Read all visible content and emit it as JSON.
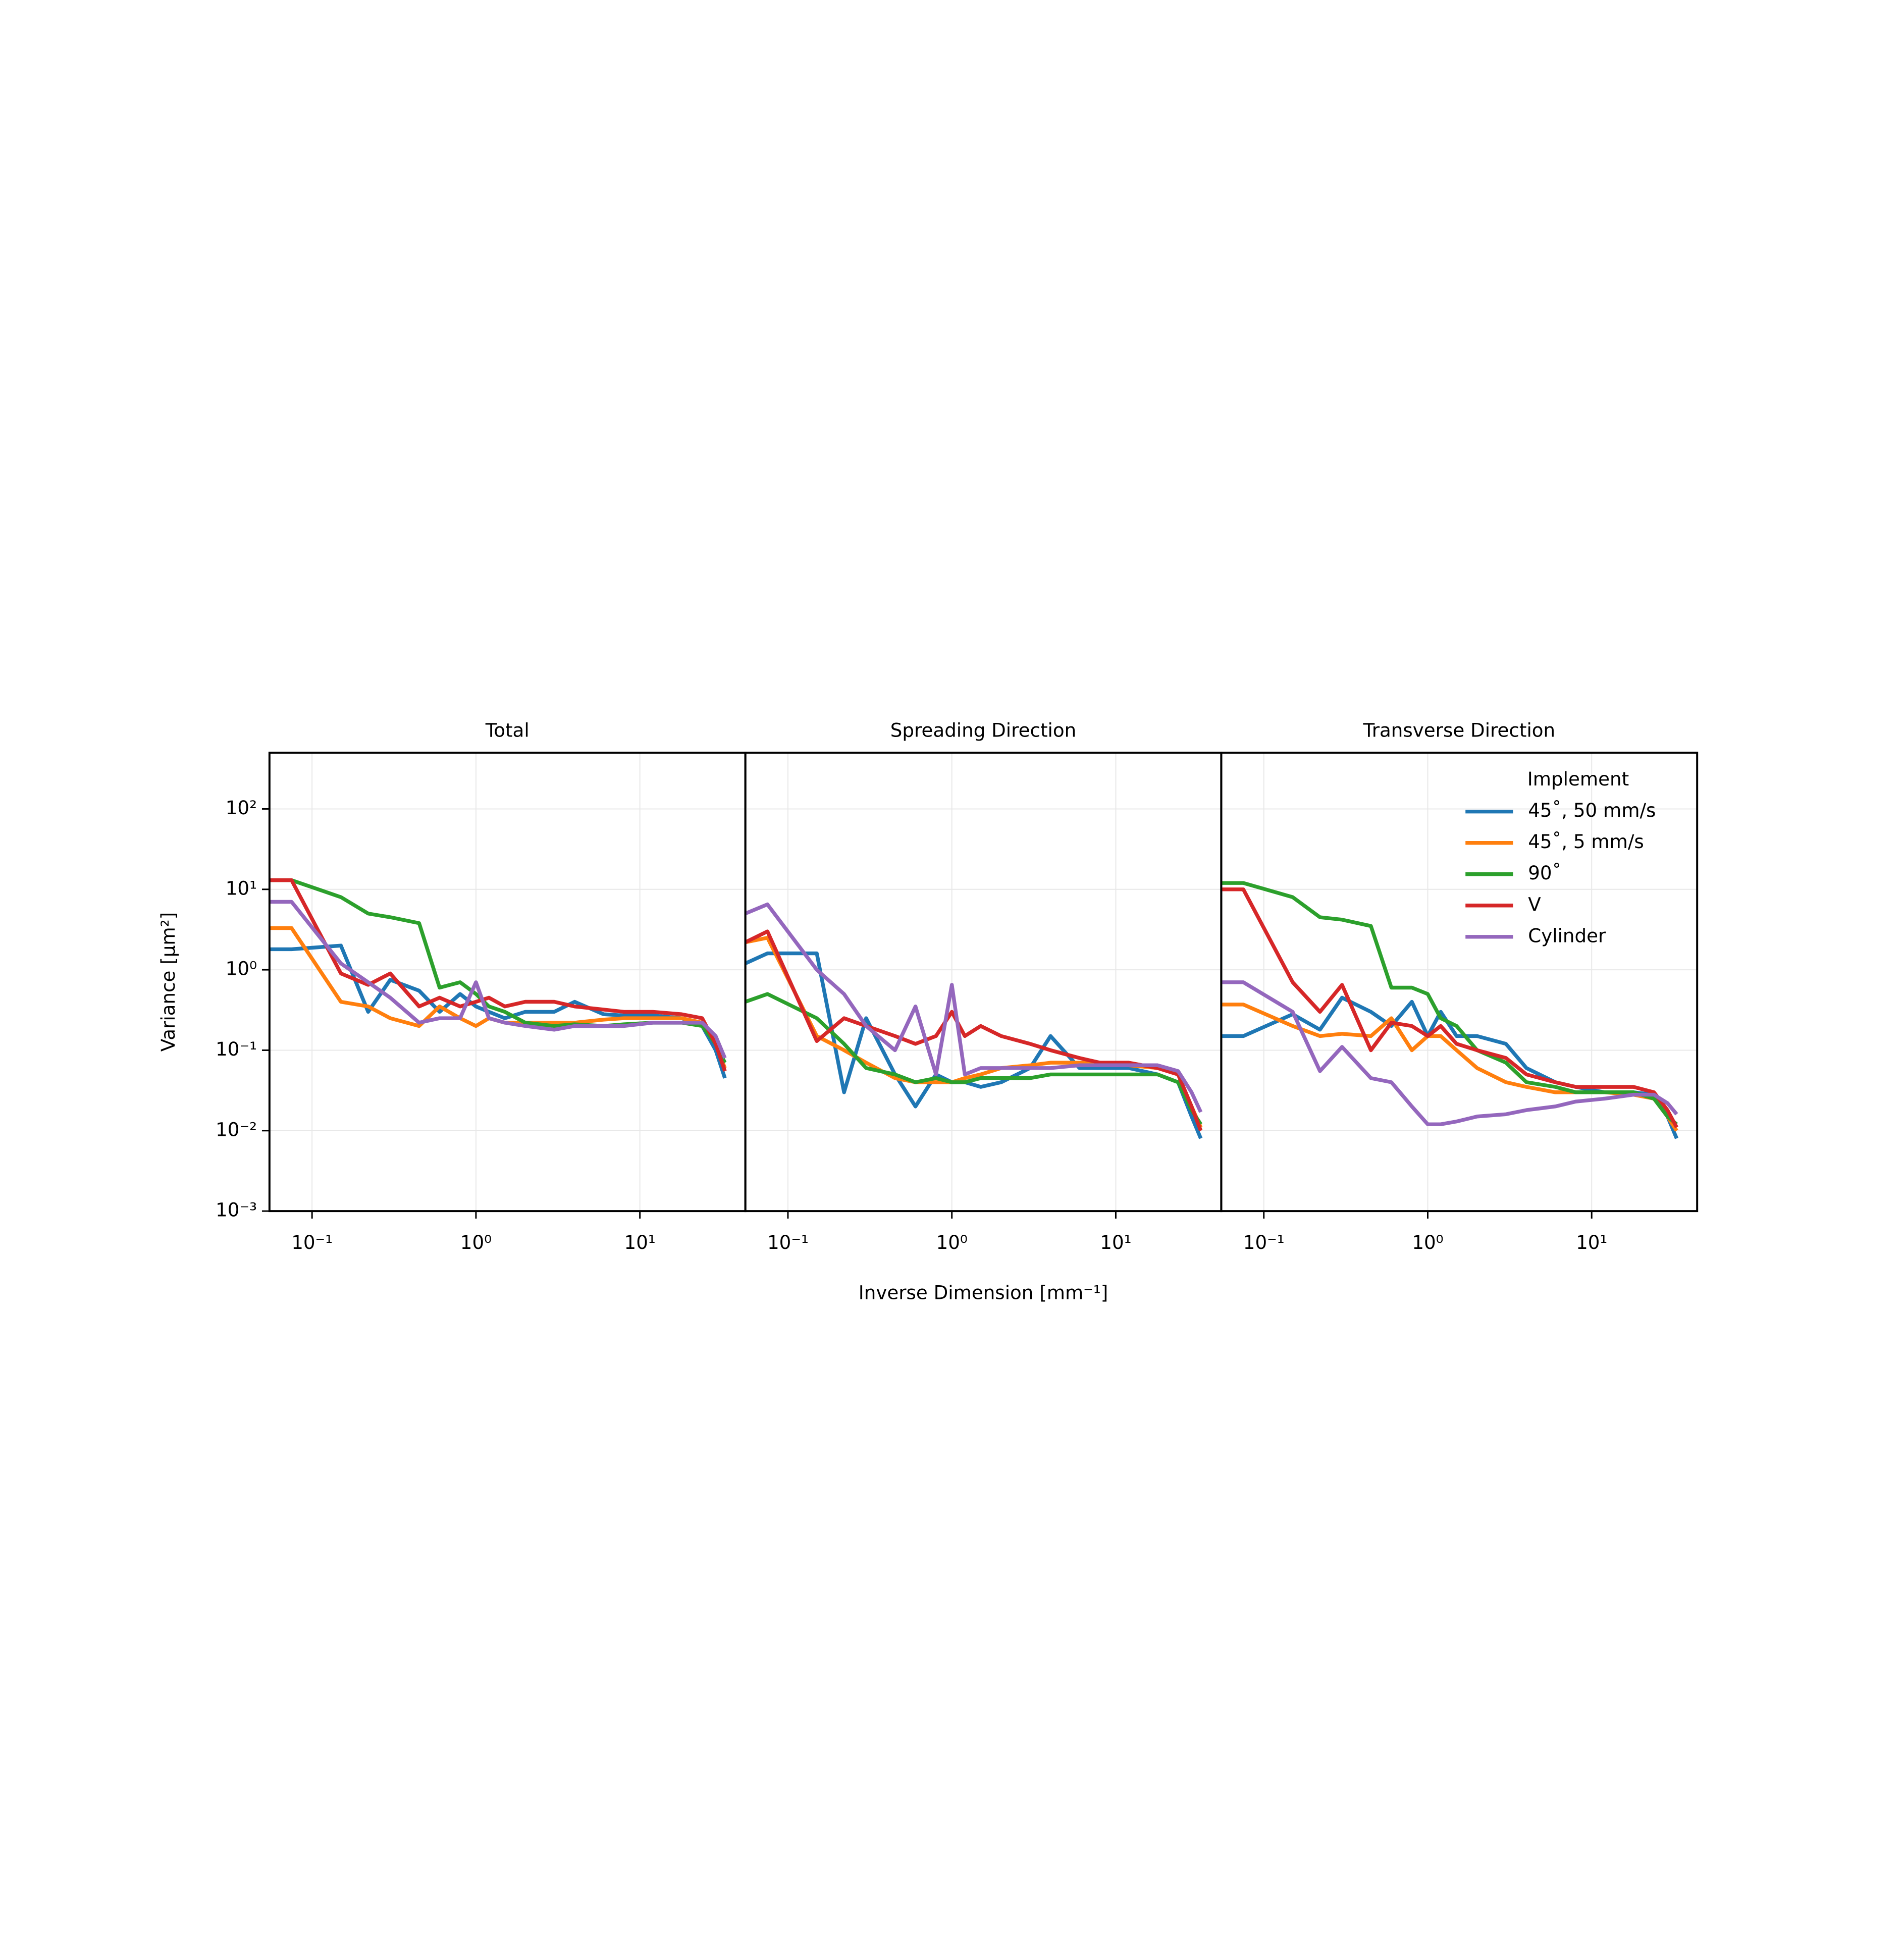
{
  "chart_data": [
    {
      "type": "line",
      "title": "Total",
      "y_label": "Variance [µm²]",
      "x": [
        0.055,
        0.075,
        0.15,
        0.22,
        0.3,
        0.45,
        0.6,
        0.8,
        1.0,
        1.2,
        1.5,
        2,
        3,
        4,
        6,
        8,
        12,
        18,
        24,
        29,
        33
      ],
      "series": [
        {
          "color": "#1f77b4",
          "values": [
            1.8,
            1.8,
            2.0,
            0.3,
            0.75,
            0.55,
            0.3,
            0.5,
            0.35,
            0.3,
            0.25,
            0.3,
            0.3,
            0.4,
            0.28,
            0.27,
            0.27,
            0.25,
            0.2,
            0.1,
            0.045
          ]
        },
        {
          "color": "#ff7f0e",
          "values": [
            3.3,
            3.3,
            0.4,
            0.35,
            0.25,
            0.2,
            0.35,
            0.25,
            0.2,
            0.25,
            0.22,
            0.22,
            0.22,
            0.22,
            0.24,
            0.25,
            0.25,
            0.25,
            0.22,
            0.12,
            0.06
          ]
        },
        {
          "color": "#2ca02c",
          "values": [
            13,
            13,
            8,
            5,
            4.5,
            3.8,
            0.6,
            0.7,
            0.5,
            0.35,
            0.3,
            0.22,
            0.2,
            0.21,
            0.2,
            0.21,
            0.22,
            0.22,
            0.2,
            0.12,
            0.07
          ]
        },
        {
          "color": "#d62728",
          "values": [
            13,
            13,
            0.9,
            0.65,
            0.9,
            0.35,
            0.45,
            0.35,
            0.4,
            0.45,
            0.35,
            0.4,
            0.4,
            0.35,
            0.32,
            0.3,
            0.3,
            0.28,
            0.25,
            0.12,
            0.055
          ]
        },
        {
          "color": "#9467bd",
          "values": [
            7,
            7,
            1.2,
            0.7,
            0.45,
            0.22,
            0.25,
            0.25,
            0.7,
            0.25,
            0.22,
            0.2,
            0.18,
            0.2,
            0.2,
            0.2,
            0.22,
            0.22,
            0.22,
            0.15,
            0.08
          ]
        }
      ],
      "xlim": [
        0.055,
        44
      ],
      "ylim": [
        0.001,
        500
      ],
      "log_x": true,
      "log_y": true,
      "grid": true,
      "xticks": [
        {
          "value": 0.1,
          "label": "10⁻¹"
        },
        {
          "value": 1,
          "label": "10⁰"
        },
        {
          "value": 10,
          "label": "10¹"
        }
      ],
      "yticks": [
        {
          "value": 0.001,
          "label": "10⁻³"
        },
        {
          "value": 0.01,
          "label": "10⁻²"
        },
        {
          "value": 0.1,
          "label": "10⁻¹"
        },
        {
          "value": 1,
          "label": "10⁰"
        },
        {
          "value": 10,
          "label": "10¹"
        },
        {
          "value": 100,
          "label": "10²"
        }
      ]
    },
    {
      "type": "line",
      "title": "Spreading Direction",
      "x_label": "Inverse Dimension [mm⁻¹]",
      "x": [
        0.055,
        0.075,
        0.15,
        0.22,
        0.3,
        0.45,
        0.6,
        0.8,
        1.0,
        1.2,
        1.5,
        2,
        3,
        4,
        6,
        8,
        12,
        18,
        24,
        29,
        33
      ],
      "series": [
        {
          "color": "#1f77b4",
          "values": [
            1.2,
            1.6,
            1.6,
            0.03,
            0.25,
            0.05,
            0.02,
            0.05,
            0.04,
            0.04,
            0.035,
            0.04,
            0.06,
            0.15,
            0.06,
            0.06,
            0.06,
            0.05,
            0.04,
            0.015,
            0.008
          ]
        },
        {
          "color": "#ff7f0e",
          "values": [
            2.2,
            2.5,
            0.15,
            0.1,
            0.07,
            0.045,
            0.04,
            0.04,
            0.04,
            0.045,
            0.05,
            0.06,
            0.065,
            0.07,
            0.07,
            0.07,
            0.065,
            0.06,
            0.05,
            0.02,
            0.011
          ]
        },
        {
          "color": "#2ca02c",
          "values": [
            0.4,
            0.5,
            0.25,
            0.12,
            0.06,
            0.05,
            0.04,
            0.045,
            0.04,
            0.04,
            0.045,
            0.045,
            0.045,
            0.05,
            0.05,
            0.05,
            0.05,
            0.05,
            0.04,
            0.018,
            0.012
          ]
        },
        {
          "color": "#d62728",
          "values": [
            2.2,
            3,
            0.13,
            0.25,
            0.2,
            0.15,
            0.12,
            0.15,
            0.3,
            0.15,
            0.2,
            0.15,
            0.12,
            0.1,
            0.08,
            0.07,
            0.07,
            0.06,
            0.05,
            0.02,
            0.01
          ]
        },
        {
          "color": "#9467bd",
          "values": [
            5,
            6.5,
            1,
            0.5,
            0.2,
            0.1,
            0.35,
            0.05,
            0.65,
            0.05,
            0.06,
            0.06,
            0.06,
            0.06,
            0.065,
            0.065,
            0.065,
            0.065,
            0.055,
            0.03,
            0.017
          ]
        }
      ],
      "xlim": [
        0.055,
        44
      ],
      "ylim": [
        0.001,
        500
      ],
      "log_x": true,
      "log_y": true,
      "grid": true,
      "xticks": [
        {
          "value": 0.1,
          "label": "10⁻¹"
        },
        {
          "value": 1,
          "label": "10⁰"
        },
        {
          "value": 10,
          "label": "10¹"
        }
      ]
    },
    {
      "type": "line",
      "title": "Transverse Direction",
      "legend_title": "Implement",
      "legend": "upper right",
      "x": [
        0.055,
        0.075,
        0.15,
        0.22,
        0.3,
        0.45,
        0.6,
        0.8,
        1.0,
        1.2,
        1.5,
        2,
        3,
        4,
        6,
        8,
        12,
        18,
        24,
        29,
        33
      ],
      "series": [
        {
          "name": "45˚, 50 mm/s",
          "color": "#1f77b4",
          "values": [
            0.15,
            0.15,
            0.28,
            0.18,
            0.45,
            0.3,
            0.2,
            0.4,
            0.15,
            0.3,
            0.15,
            0.15,
            0.12,
            0.06,
            0.04,
            0.035,
            0.03,
            0.03,
            0.028,
            0.015,
            0.008
          ]
        },
        {
          "name": "45˚, 5 mm/s",
          "color": "#ff7f0e",
          "values": [
            0.37,
            0.37,
            0.2,
            0.15,
            0.16,
            0.15,
            0.25,
            0.1,
            0.15,
            0.15,
            0.1,
            0.06,
            0.04,
            0.035,
            0.03,
            0.03,
            0.03,
            0.028,
            0.025,
            0.015,
            0.01
          ]
        },
        {
          "name": "90˚",
          "color": "#2ca02c",
          "values": [
            12,
            12,
            8,
            4.5,
            4.2,
            3.5,
            0.6,
            0.6,
            0.5,
            0.25,
            0.2,
            0.1,
            0.07,
            0.04,
            0.035,
            0.03,
            0.03,
            0.03,
            0.025,
            0.015,
            0.012
          ]
        },
        {
          "name": "V",
          "color": "#d62728",
          "values": [
            10,
            10,
            0.7,
            0.3,
            0.65,
            0.1,
            0.22,
            0.2,
            0.15,
            0.2,
            0.12,
            0.1,
            0.08,
            0.05,
            0.04,
            0.035,
            0.035,
            0.035,
            0.03,
            0.018,
            0.011
          ]
        },
        {
          "name": "Cylinder",
          "color": "#9467bd",
          "values": [
            0.7,
            0.7,
            0.3,
            0.055,
            0.11,
            0.045,
            0.04,
            0.02,
            0.012,
            0.012,
            0.013,
            0.015,
            0.016,
            0.018,
            0.02,
            0.023,
            0.025,
            0.028,
            0.028,
            0.022,
            0.016
          ]
        }
      ],
      "xlim": [
        0.055,
        44
      ],
      "ylim": [
        0.001,
        500
      ],
      "log_x": true,
      "log_y": true,
      "grid": true,
      "xticks": [
        {
          "value": 0.1,
          "label": "10⁻¹"
        },
        {
          "value": 1,
          "label": "10⁰"
        },
        {
          "value": 10,
          "label": "10¹"
        }
      ]
    }
  ]
}
